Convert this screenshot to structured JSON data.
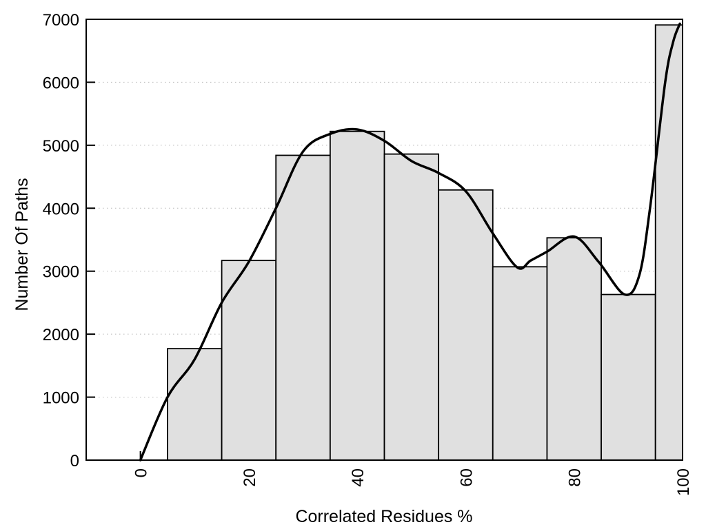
{
  "figure": {
    "background": "#ffffff"
  },
  "chart_data": {
    "type": "bar",
    "title": "",
    "xlabel": "Correlated Residues %",
    "ylabel": "Number Of Paths",
    "xlim": [
      -10,
      100
    ],
    "ylim": [
      0,
      7000
    ],
    "grid": "horizontal dotted gridlines at each y tick",
    "legend": "none",
    "colors": {
      "bar_fill": "#e0e0e0",
      "bar_edge": "#000000",
      "curve": "#000000",
      "axis": "#000000",
      "gridline": "#b8b8b8"
    },
    "xticks": [
      0,
      20,
      40,
      60,
      80,
      100
    ],
    "xtick_labels": [
      "0",
      "20",
      "40",
      "60",
      "80",
      "100"
    ],
    "yticks": [
      0,
      1000,
      2000,
      3000,
      4000,
      5000,
      6000,
      7000
    ],
    "ytick_labels": [
      "0",
      "1000",
      "2000",
      "3000",
      "4000",
      "5000",
      "6000",
      "7000"
    ],
    "bins": [
      {
        "x0": 5,
        "x1": 15,
        "count": 1770
      },
      {
        "x0": 15,
        "x1": 25,
        "count": 3170
      },
      {
        "x0": 25,
        "x1": 35,
        "count": 4840
      },
      {
        "x0": 35,
        "x1": 45,
        "count": 5220
      },
      {
        "x0": 45,
        "x1": 55,
        "count": 4860
      },
      {
        "x0": 55,
        "x1": 65,
        "count": 4290
      },
      {
        "x0": 65,
        "x1": 75,
        "count": 3070
      },
      {
        "x0": 75,
        "x1": 85,
        "count": 3530
      },
      {
        "x0": 85,
        "x1": 95,
        "count": 2630
      },
      {
        "x0": 95,
        "x1": 100,
        "count": 6910
      }
    ],
    "smooth_curve_points": [
      [
        0,
        0
      ],
      [
        5,
        1000
      ],
      [
        10,
        1600
      ],
      [
        15,
        2500
      ],
      [
        20,
        3150
      ],
      [
        25,
        4000
      ],
      [
        30,
        4900
      ],
      [
        35,
        5180
      ],
      [
        40,
        5250
      ],
      [
        45,
        5070
      ],
      [
        50,
        4750
      ],
      [
        55,
        4560
      ],
      [
        60,
        4270
      ],
      [
        65,
        3600
      ],
      [
        69.5,
        3060
      ],
      [
        72,
        3170
      ],
      [
        75,
        3310
      ],
      [
        80,
        3550
      ],
      [
        84.5,
        3150
      ],
      [
        89.3,
        2630
      ],
      [
        92,
        2930
      ],
      [
        94,
        4000
      ],
      [
        96.8,
        6000
      ],
      [
        98.3,
        6650
      ],
      [
        99.5,
        6930
      ]
    ]
  }
}
